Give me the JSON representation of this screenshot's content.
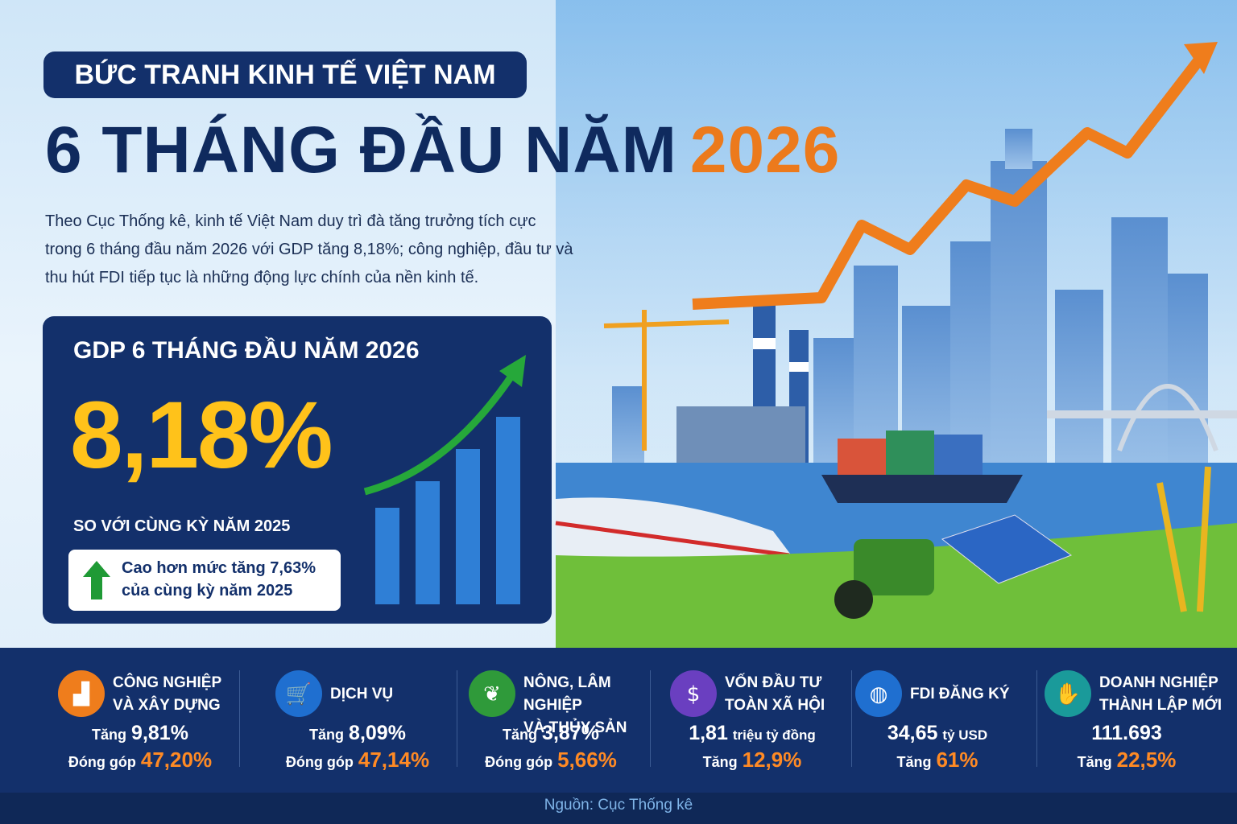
{
  "header": {
    "badge": "BỨC TRANH KINH TẾ VIỆT NAM",
    "title_main": "6 THÁNG ĐẦU NĂM",
    "title_year": "2026"
  },
  "intro": [
    "Theo Cục Thống kê, kinh tế Việt Nam duy trì đà tăng trưởng tích cực",
    "trong 6 tháng đầu năm 2026 với GDP tăng 8,18%; công nghiệp, đầu tư và",
    "thu hút FDI tiếp tục là những động lực chính của nền kinh tế."
  ],
  "gdp_card": {
    "title": "GDP 6 THÁNG ĐẦU NĂM 2026",
    "value": "8,18%",
    "subtitle": "SO VỚI CÙNG KỲ NĂM 2025",
    "note": [
      "Cao hơn mức tăng 7,63%",
      "của cùng kỳ năm 2025"
    ]
  },
  "stats": [
    {
      "title": [
        "CÔNG NGHIỆP",
        "VÀ XÂY DỰNG"
      ],
      "lines": [
        {
          "label": "Tăng",
          "value": "9,81%"
        },
        {
          "label": "Đóng góp",
          "value": "47,20%"
        }
      ]
    },
    {
      "title": [
        "DỊCH VỤ"
      ],
      "lines": [
        {
          "label": "Tăng",
          "value": "8,09%"
        },
        {
          "label": "Đóng góp",
          "value": "47,14%"
        }
      ]
    },
    {
      "title": [
        "NÔNG, LÂM NGHIỆP",
        "VÀ THỦY SẢN"
      ],
      "lines": [
        {
          "label": "Tăng",
          "value": "3,87%"
        },
        {
          "label": "Đóng góp",
          "value": "5,66%"
        }
      ]
    },
    {
      "title": [
        "VỐN ĐẦU TƯ",
        "TOÀN XÃ HỘI"
      ],
      "lines": [
        {
          "value": "1,81",
          "unit": "triệu tỷ đồng"
        },
        {
          "label": "Tăng",
          "value": "12,9%"
        }
      ]
    },
    {
      "title": [
        "FDI ĐĂNG KÝ"
      ],
      "lines": [
        {
          "value": "34,65",
          "unit": "tỷ USD"
        },
        {
          "label": "Tăng",
          "value": "61%"
        }
      ]
    },
    {
      "title": [
        "DOANH NGHIỆP",
        "THÀNH LẬP MỚI"
      ],
      "lines": [
        {
          "value": "111.693"
        },
        {
          "label": "Tăng",
          "value": "22,5%"
        }
      ]
    }
  ],
  "source": "Nguồn: Cục Thống kê"
}
